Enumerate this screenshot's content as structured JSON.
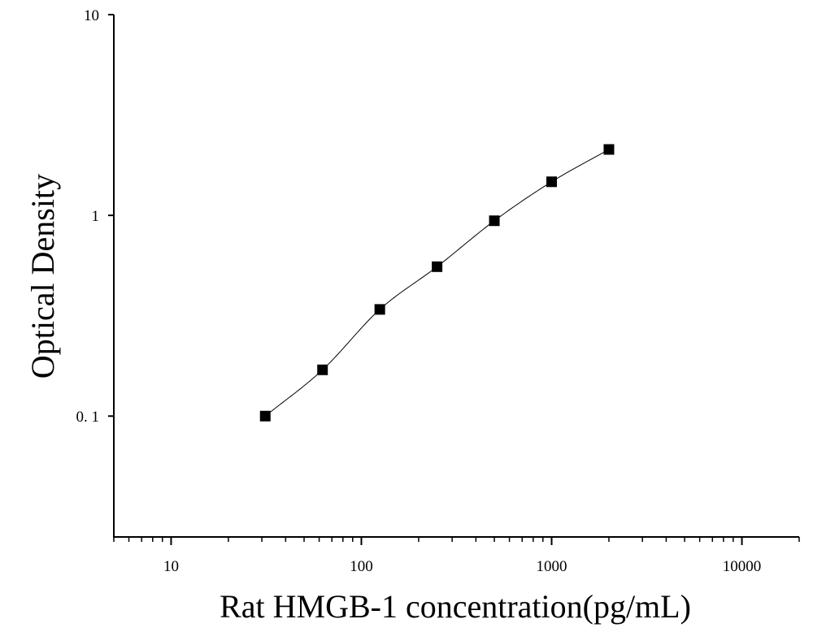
{
  "chart_data": {
    "type": "scatter",
    "title": "",
    "xlabel": "Rat HMGB-1 concentration(pg/mL)",
    "ylabel": "Optical Density",
    "x_scale": "log",
    "y_scale": "log",
    "xlim": [
      5,
      20000
    ],
    "ylim": [
      0.025,
      10
    ],
    "x_ticks": [
      10,
      100,
      1000,
      10000
    ],
    "x_tick_labels": [
      "10",
      "100",
      "1000",
      "10000"
    ],
    "y_ticks": [
      0.1,
      1,
      10
    ],
    "y_tick_labels": [
      "0. 1",
      "1",
      "10"
    ],
    "grid": false,
    "legend": "none",
    "marker": "square",
    "fit_curve": true,
    "series": [
      {
        "x": [
          31.25,
          62.5,
          125,
          250,
          500,
          1000,
          2000
        ],
        "y": [
          0.1,
          0.17,
          0.34,
          0.555,
          0.94,
          1.47,
          2.13
        ]
      }
    ],
    "colors": {
      "marker": "#000000",
      "line": "#000000",
      "axis": "#000000"
    }
  }
}
